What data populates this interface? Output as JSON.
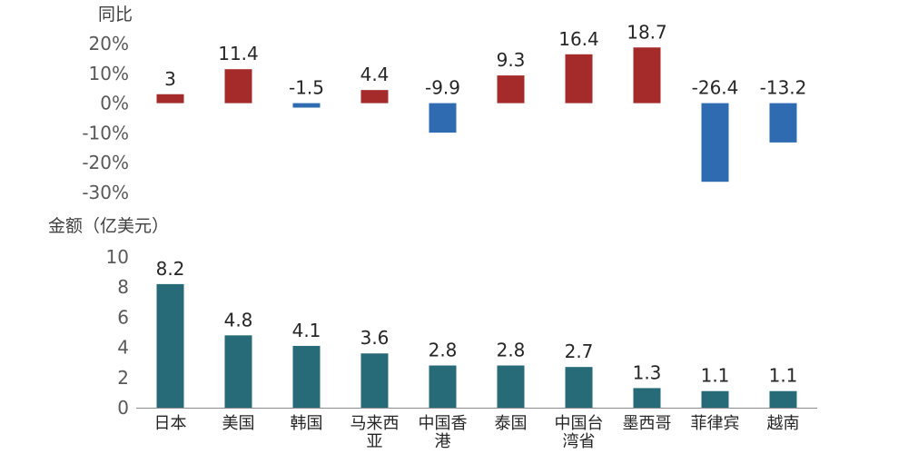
{
  "chart_data": [
    {
      "type": "bar",
      "ylabel": "同比",
      "ylim": [
        -30,
        20
      ],
      "ytick_values": [
        20,
        10,
        0,
        -10,
        -20,
        -30
      ],
      "ytick_labels": [
        "20%",
        "10%",
        "0%",
        "-10%",
        "-20%",
        "-30%"
      ],
      "categories": [
        "日本",
        "美国",
        "韩国",
        "马来西亚",
        "中国香港",
        "泰国",
        "中国台湾省",
        "墨西哥",
        "菲律宾",
        "越南"
      ],
      "values": [
        3,
        11.4,
        -1.5,
        4.4,
        -9.9,
        9.3,
        16.4,
        18.7,
        -26.4,
        -13.2
      ],
      "data_labels": [
        "3",
        "11.4",
        "-1.5",
        "4.4",
        "-9.9",
        "9.3",
        "16.4",
        "18.7",
        "-26.4",
        "-13.2"
      ],
      "colors": {
        "positive": "#A52A2A",
        "negative": "#2E6BB0"
      }
    },
    {
      "type": "bar",
      "ylabel": "金额（亿美元）",
      "ylim": [
        0,
        10
      ],
      "ytick_values": [
        10,
        8,
        6,
        4,
        2,
        0
      ],
      "ytick_labels": [
        "10",
        "8",
        "6",
        "4",
        "2",
        "0"
      ],
      "categories": [
        "日本",
        "美国",
        "韩国",
        "马来西亚",
        "中国香港",
        "泰国",
        "中国台湾省",
        "墨西哥",
        "菲律宾",
        "越南"
      ],
      "category_lines": [
        [
          "日本"
        ],
        [
          "美国"
        ],
        [
          "韩国"
        ],
        [
          "马来西",
          "亚"
        ],
        [
          "中国香",
          "港"
        ],
        [
          "泰国"
        ],
        [
          "中国台",
          "湾省"
        ],
        [
          "墨西哥"
        ],
        [
          "菲律宾"
        ],
        [
          "越南"
        ]
      ],
      "values": [
        8.2,
        4.8,
        4.1,
        3.6,
        2.8,
        2.8,
        2.7,
        1.3,
        1.1,
        1.1
      ],
      "data_labels": [
        "8.2",
        "4.8",
        "4.1",
        "3.6",
        "2.8",
        "2.8",
        "2.7",
        "1.3",
        "1.1",
        "1.1"
      ],
      "colors": {
        "bar": "#276A78",
        "axis": "#8C8C8C"
      }
    }
  ]
}
